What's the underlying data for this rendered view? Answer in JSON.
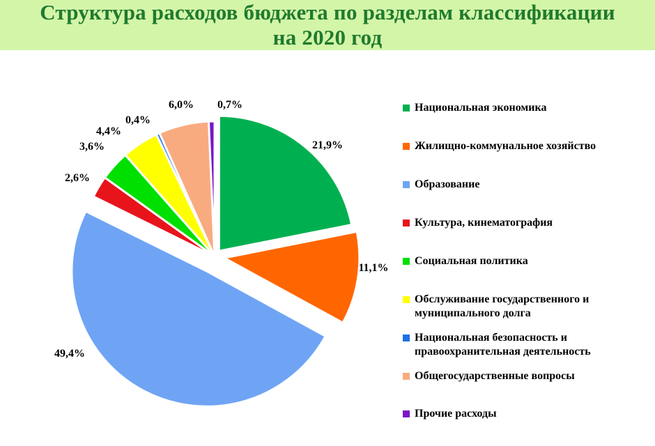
{
  "header": {
    "title_line1": "Структура расходов бюджета по разделам классификации",
    "title_line2": "на 2020 год"
  },
  "chart_data": {
    "type": "pie",
    "title": "Структура расходов бюджета по разделам классификации на 2020 год",
    "legend_position": "right",
    "slices": [
      {
        "label": "Национальная экономика",
        "lines": [
          "Национальная экономика"
        ],
        "value": 21.9,
        "value_label": "21,9%",
        "color": "#00b050"
      },
      {
        "label": "Жилищно-коммунальное хозяйство",
        "lines": [
          "Жилищно-коммунальное хозяйство"
        ],
        "value": 11.1,
        "value_label": "11,1%",
        "color": "#ff6600"
      },
      {
        "label": "Образование",
        "lines": [
          "Образование"
        ],
        "value": 49.4,
        "value_label": "49,4%",
        "color": "#6fa4f5"
      },
      {
        "label": "Культура, кинематография",
        "lines": [
          "Культура, кинематография"
        ],
        "value": 2.6,
        "value_label": "2,6%",
        "color": "#e8141c"
      },
      {
        "label": "Социальная политика",
        "lines": [
          "Социальная политика"
        ],
        "value": 3.6,
        "value_label": "3,6%",
        "color": "#00e000"
      },
      {
        "label": "Обслуживание государственного и муниципального долга",
        "lines": [
          "Обслуживание государственного и",
          "муниципального долга"
        ],
        "value": 4.4,
        "value_label": "4,4%",
        "color": "#ffff00"
      },
      {
        "label": "Национальная безопасность и правоохранительная деятельность",
        "lines": [
          "Национальная безопасность и",
          "правоохранительная деятельность"
        ],
        "value": 0.4,
        "value_label": "0,4%",
        "color": "#1e6fe8"
      },
      {
        "label": "Общегосударственные вопросы",
        "lines": [
          "Общегосударственные вопросы"
        ],
        "value": 6.0,
        "value_label": "6,0%",
        "color": "#f9ab80"
      },
      {
        "label": "Прочие расходы",
        "lines": [
          "Прочие расходы"
        ],
        "value": 0.7,
        "value_label": "0,7%",
        "color": "#7a16c8"
      }
    ]
  }
}
